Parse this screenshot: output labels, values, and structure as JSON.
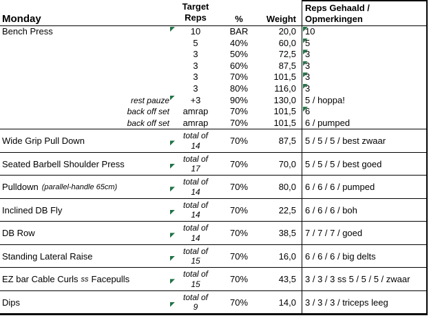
{
  "colors": {
    "indicator_green": "#217346",
    "grid": "#000000",
    "background": "#ffffff"
  },
  "header": {
    "day": "Monday",
    "target": [
      "Target",
      "Reps"
    ],
    "pct": "%",
    "weight": "Weight",
    "reps": [
      "Reps Gehaald /",
      "Opmerkingen"
    ]
  },
  "bench": {
    "exercise": "Bench Press",
    "rows": [
      {
        "label": "",
        "target": "10",
        "pct": "BAR",
        "weight": "20,0",
        "reps": "10"
      },
      {
        "label": "",
        "target": "5",
        "pct": "40%",
        "weight": "60,0",
        "reps": "5"
      },
      {
        "label": "",
        "target": "3",
        "pct": "50%",
        "weight": "72,5",
        "reps": "3"
      },
      {
        "label": "",
        "target": "3",
        "pct": "60%",
        "weight": "87,5",
        "reps": "3"
      },
      {
        "label": "",
        "target": "3",
        "pct": "70%",
        "weight": "101,5",
        "reps": "3"
      },
      {
        "label": "",
        "target": "3",
        "pct": "80%",
        "weight": "116,0",
        "reps": "3"
      },
      {
        "label": "rest pauze",
        "target": "+3",
        "pct": "90%",
        "weight": "130,0",
        "reps": "5 / hoppa!"
      },
      {
        "label": "back off set",
        "target": "amrap",
        "pct": "70%",
        "weight": "101,5",
        "reps": "6"
      },
      {
        "label": "back off set",
        "target": "amrap",
        "pct": "70%",
        "weight": "101,5",
        "reps": "6 / pumped"
      }
    ]
  },
  "blocks": [
    {
      "name": "Wide Grip Pull Down",
      "note": "",
      "target_label": "total of",
      "target_value": "14",
      "pct": "70%",
      "weight": "87,5",
      "reps": "5 / 5 / 5 / best zwaar"
    },
    {
      "name": "Seated Barbell Shoulder Press",
      "note": "",
      "target_label": "total of",
      "target_value": "17",
      "pct": "70%",
      "weight": "70,0",
      "reps": "5 / 5 / 5 / best goed"
    },
    {
      "name": "Pulldown",
      "note": "(parallel-handle 65cm)",
      "target_label": "total of",
      "target_value": "14",
      "pct": "70%",
      "weight": "80,0",
      "reps": "6 / 6 / 6 / pumped"
    },
    {
      "name": "Inclined DB Fly",
      "note": "",
      "target_label": "total of",
      "target_value": "14",
      "pct": "70%",
      "weight": "22,5",
      "reps": "6 / 6 / 6 / boh"
    },
    {
      "name": "DB Row",
      "note": "",
      "target_label": "total of",
      "target_value": "14",
      "pct": "70%",
      "weight": "38,5",
      "reps": "7 / 7 / 7 / goed"
    },
    {
      "name": "Standing Lateral Raise",
      "note": "",
      "target_label": "total of",
      "target_value": "15",
      "pct": "70%",
      "weight": "16,0",
      "reps": "6 / 6 / 6 / big delts"
    },
    {
      "name": "EZ bar Cable Curls",
      "ss": "ss",
      "name2": "Facepulls",
      "note": "",
      "target_label": "total of",
      "target_value": "15",
      "pct": "70%",
      "weight": "43,5",
      "reps": "3 / 3 / 3 ss 5 / 5 / 5 / zwaar"
    },
    {
      "name": "Dips",
      "note": "",
      "target_label": "total of",
      "target_value": "9",
      "pct": "70%",
      "weight": "14,0",
      "reps": "3 / 3 / 3 / triceps leeg"
    }
  ]
}
